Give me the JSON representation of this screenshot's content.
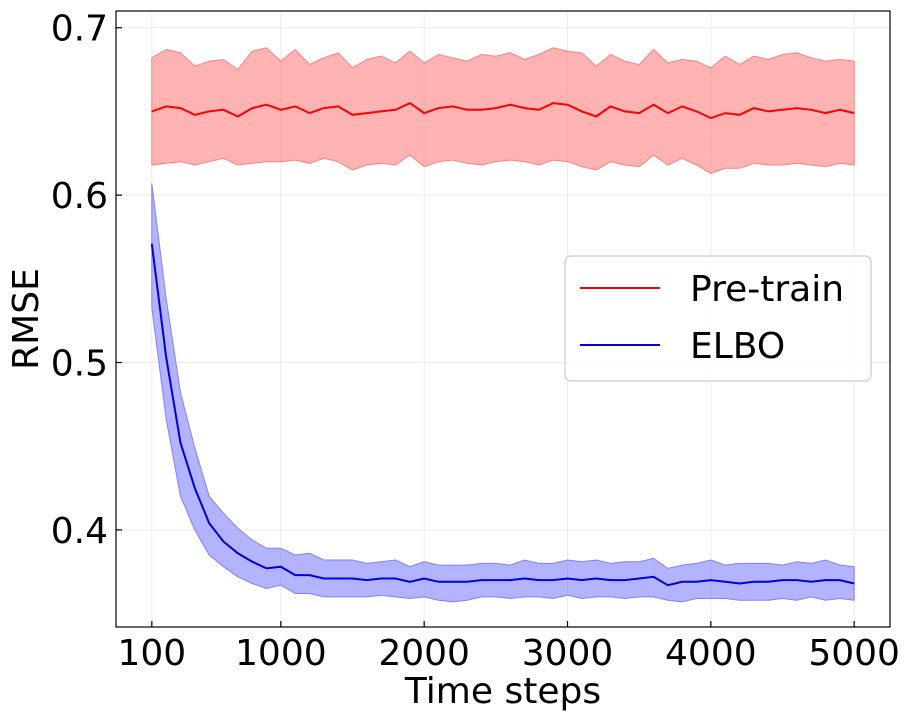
{
  "chart_data": {
    "type": "line",
    "xlabel": "Time steps",
    "ylabel": "RMSE",
    "xlim": [
      -150,
      5250
    ],
    "ylim": [
      0.342,
      0.71
    ],
    "xticks": [
      100,
      1000,
      2000,
      3000,
      4000,
      5000
    ],
    "xtick_labels": [
      "100",
      "1000",
      "2000",
      "3000",
      "4000",
      "5000"
    ],
    "yticks": [
      0.4,
      0.5,
      0.6,
      0.7
    ],
    "ytick_labels": [
      "0.4",
      "0.5",
      "0.6",
      "0.7"
    ],
    "grid": true,
    "legend_position": "center-right",
    "x": [
      100,
      200,
      300,
      400,
      500,
      600,
      700,
      800,
      900,
      1000,
      1100,
      1200,
      1300,
      1400,
      1500,
      1600,
      1700,
      1800,
      1900,
      2000,
      2100,
      2200,
      2300,
      2400,
      2500,
      2600,
      2700,
      2800,
      2900,
      3000,
      3100,
      3200,
      3300,
      3400,
      3500,
      3600,
      3700,
      3800,
      3900,
      4000,
      4100,
      4200,
      4300,
      4400,
      4500,
      4600,
      4700,
      4800,
      4900,
      5000
    ],
    "series": [
      {
        "name": "Pre-train",
        "color": "#ff0000",
        "band_color": "#ff8080",
        "values": [
          0.65,
          0.653,
          0.652,
          0.648,
          0.65,
          0.651,
          0.647,
          0.652,
          0.654,
          0.651,
          0.653,
          0.649,
          0.652,
          0.653,
          0.648,
          0.649,
          0.65,
          0.651,
          0.655,
          0.649,
          0.652,
          0.653,
          0.651,
          0.651,
          0.652,
          0.654,
          0.652,
          0.651,
          0.655,
          0.654,
          0.65,
          0.647,
          0.653,
          0.65,
          0.649,
          0.654,
          0.649,
          0.653,
          0.65,
          0.646,
          0.649,
          0.648,
          0.652,
          0.65,
          0.651,
          0.652,
          0.651,
          0.649,
          0.651,
          0.649
        ],
        "upper": [
          0.682,
          0.687,
          0.685,
          0.677,
          0.68,
          0.681,
          0.675,
          0.686,
          0.688,
          0.68,
          0.687,
          0.678,
          0.682,
          0.685,
          0.676,
          0.681,
          0.683,
          0.679,
          0.686,
          0.679,
          0.684,
          0.682,
          0.68,
          0.684,
          0.683,
          0.685,
          0.681,
          0.684,
          0.688,
          0.686,
          0.685,
          0.677,
          0.684,
          0.68,
          0.678,
          0.687,
          0.679,
          0.681,
          0.68,
          0.676,
          0.683,
          0.678,
          0.683,
          0.681,
          0.684,
          0.685,
          0.682,
          0.68,
          0.681,
          0.68
        ],
        "lower": [
          0.618,
          0.619,
          0.62,
          0.618,
          0.62,
          0.622,
          0.618,
          0.619,
          0.62,
          0.62,
          0.621,
          0.619,
          0.622,
          0.62,
          0.615,
          0.618,
          0.619,
          0.618,
          0.624,
          0.617,
          0.62,
          0.621,
          0.619,
          0.618,
          0.62,
          0.621,
          0.62,
          0.618,
          0.621,
          0.62,
          0.617,
          0.615,
          0.62,
          0.618,
          0.617,
          0.624,
          0.618,
          0.622,
          0.618,
          0.613,
          0.616,
          0.616,
          0.619,
          0.618,
          0.618,
          0.619,
          0.618,
          0.617,
          0.619,
          0.618
        ]
      },
      {
        "name": "ELBO",
        "color": "#0000dd",
        "band_color": "#8080ff",
        "values": [
          0.571,
          0.503,
          0.452,
          0.425,
          0.404,
          0.393,
          0.386,
          0.381,
          0.377,
          0.378,
          0.373,
          0.373,
          0.371,
          0.371,
          0.371,
          0.37,
          0.371,
          0.371,
          0.369,
          0.371,
          0.369,
          0.369,
          0.369,
          0.37,
          0.37,
          0.37,
          0.371,
          0.37,
          0.37,
          0.371,
          0.37,
          0.371,
          0.37,
          0.37,
          0.371,
          0.372,
          0.367,
          0.369,
          0.369,
          0.37,
          0.369,
          0.368,
          0.369,
          0.369,
          0.37,
          0.37,
          0.369,
          0.37,
          0.37,
          0.368
        ],
        "upper": [
          0.607,
          0.538,
          0.482,
          0.449,
          0.42,
          0.41,
          0.401,
          0.394,
          0.389,
          0.389,
          0.385,
          0.386,
          0.382,
          0.382,
          0.382,
          0.38,
          0.381,
          0.382,
          0.378,
          0.381,
          0.379,
          0.379,
          0.379,
          0.38,
          0.38,
          0.379,
          0.382,
          0.38,
          0.38,
          0.382,
          0.381,
          0.382,
          0.38,
          0.381,
          0.381,
          0.383,
          0.377,
          0.379,
          0.38,
          0.382,
          0.379,
          0.38,
          0.38,
          0.38,
          0.379,
          0.381,
          0.38,
          0.382,
          0.379,
          0.378
        ],
        "lower": [
          0.533,
          0.466,
          0.42,
          0.4,
          0.385,
          0.378,
          0.372,
          0.368,
          0.365,
          0.367,
          0.362,
          0.362,
          0.36,
          0.36,
          0.36,
          0.36,
          0.361,
          0.36,
          0.359,
          0.36,
          0.358,
          0.357,
          0.358,
          0.36,
          0.36,
          0.359,
          0.36,
          0.36,
          0.359,
          0.361,
          0.359,
          0.36,
          0.36,
          0.359,
          0.36,
          0.36,
          0.358,
          0.357,
          0.359,
          0.359,
          0.359,
          0.358,
          0.358,
          0.358,
          0.359,
          0.358,
          0.36,
          0.358,
          0.359,
          0.358
        ]
      }
    ]
  }
}
